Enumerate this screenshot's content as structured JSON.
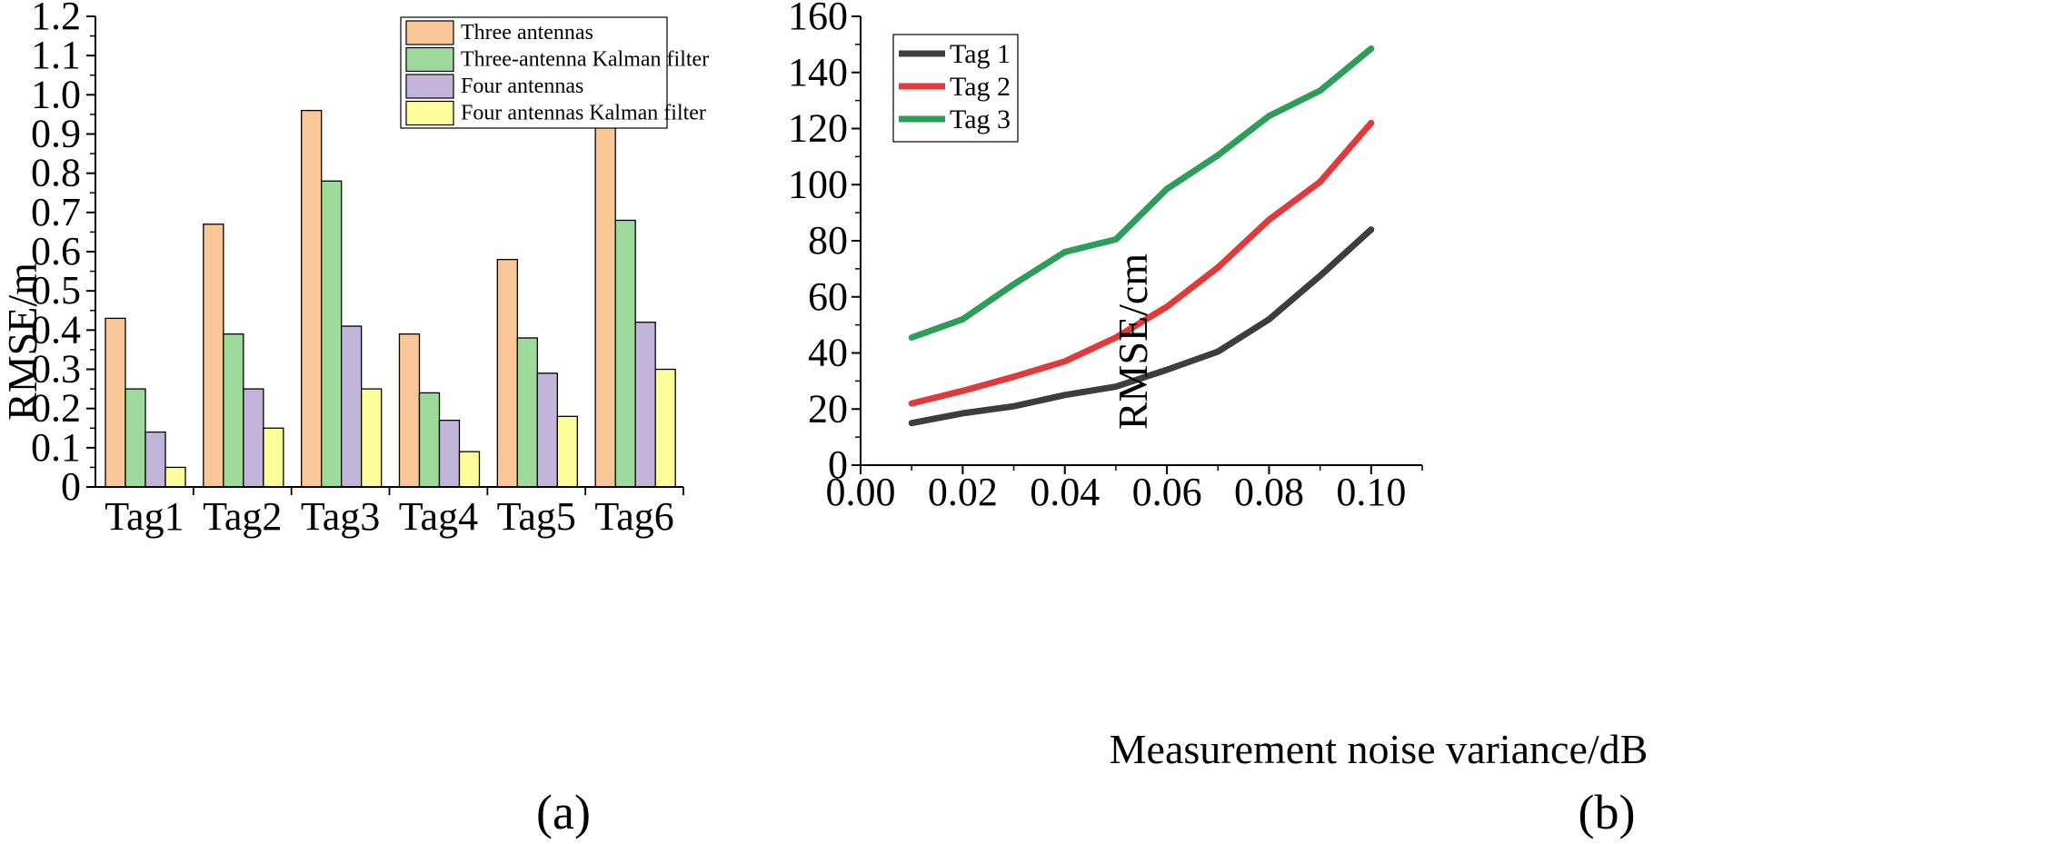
{
  "chart_data": [
    {
      "panel": "(a)",
      "type": "bar",
      "title": "",
      "xlabel": "",
      "ylabel": "RMSE/m",
      "ylim": [
        0,
        1.2
      ],
      "yticks": [
        "0",
        "0.1",
        "0.2",
        "0.3",
        "0.4",
        "0.5",
        "0.6",
        "0.7",
        "0.8",
        "0.9",
        "1.0",
        "1.1",
        "1.2"
      ],
      "categories": [
        "Tag1",
        "Tag2",
        "Tag3",
        "Tag4",
        "Tag5",
        "Tag6"
      ],
      "legend_position": "top-right",
      "series": [
        {
          "name": "Three antennas",
          "color": "#FAC898",
          "values": [
            0.43,
            0.67,
            0.96,
            0.39,
            0.58,
            0.93
          ]
        },
        {
          "name": "Three-antenna Kalman filter",
          "color": "#9ED99C",
          "values": [
            0.25,
            0.39,
            0.78,
            0.24,
            0.38,
            0.68
          ]
        },
        {
          "name": "Four antennas",
          "color": "#C3B4DA",
          "values": [
            0.14,
            0.25,
            0.41,
            0.17,
            0.29,
            0.42
          ]
        },
        {
          "name": "Four antennas Kalman filter",
          "color": "#FDFD9C",
          "values": [
            0.05,
            0.15,
            0.25,
            0.09,
            0.18,
            0.3
          ]
        }
      ]
    },
    {
      "panel": "(b)",
      "type": "line",
      "title": "",
      "xlabel": "Measurement noise variance/dB",
      "ylabel": "RMSE/cm",
      "xlim": [
        0.0,
        0.11
      ],
      "ylim": [
        0,
        160
      ],
      "xticks": [
        "0.00",
        "0.02",
        "0.04",
        "0.06",
        "0.08",
        "0.10"
      ],
      "yticks": [
        "0",
        "20",
        "40",
        "60",
        "80",
        "100",
        "120",
        "140",
        "160"
      ],
      "x": [
        0.01,
        0.02,
        0.03,
        0.04,
        0.05,
        0.06,
        0.07,
        0.08,
        0.09,
        0.1
      ],
      "legend_position": "top-left",
      "series": [
        {
          "name": "Tag 1",
          "color": "#3d3d3d",
          "values": [
            15,
            18.5,
            21,
            25,
            28,
            34,
            40.5,
            52,
            67.5,
            84
          ]
        },
        {
          "name": "Tag 2",
          "color": "#e23a3a",
          "values": [
            22,
            26.5,
            31.5,
            37,
            45.5,
            56.5,
            70.5,
            87.5,
            101,
            122
          ]
        },
        {
          "name": "Tag 3",
          "color": "#2d9e59",
          "values": [
            45.5,
            52,
            64.5,
            76,
            80.5,
            98.5,
            110.5,
            124.5,
            133.5,
            148.5
          ]
        }
      ]
    }
  ]
}
